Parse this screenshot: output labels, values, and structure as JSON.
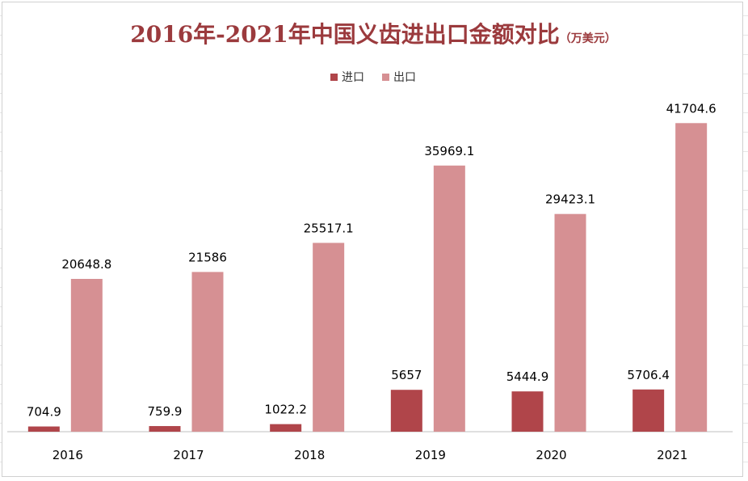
{
  "colors": {
    "import": "#b0454a",
    "export": "#d69093",
    "title": "#9b3a3d"
  },
  "chart_data": {
    "type": "bar",
    "title": "2016年-2021年中国义齿进出口金额对比",
    "unit": "（万美元）",
    "categories": [
      "2016",
      "2017",
      "2018",
      "2019",
      "2020",
      "2021"
    ],
    "series": [
      {
        "name": "进口",
        "values": [
          704.9,
          759.9,
          1022.2,
          5657,
          5444.9,
          5706.4
        ],
        "labels": [
          "704.9",
          "759.9",
          "1022.2",
          "5657",
          "5444.9",
          "5706.4"
        ]
      },
      {
        "name": "出口",
        "values": [
          20648.8,
          21586,
          25517.1,
          35969.1,
          29423.1,
          41704.6
        ],
        "labels": [
          "20648.8",
          "21586",
          "25517.1",
          "35969.1",
          "29423.1",
          "41704.6"
        ]
      }
    ],
    "ylim": [
      0,
      42500
    ],
    "legend_position": "top-center",
    "grid": false
  }
}
